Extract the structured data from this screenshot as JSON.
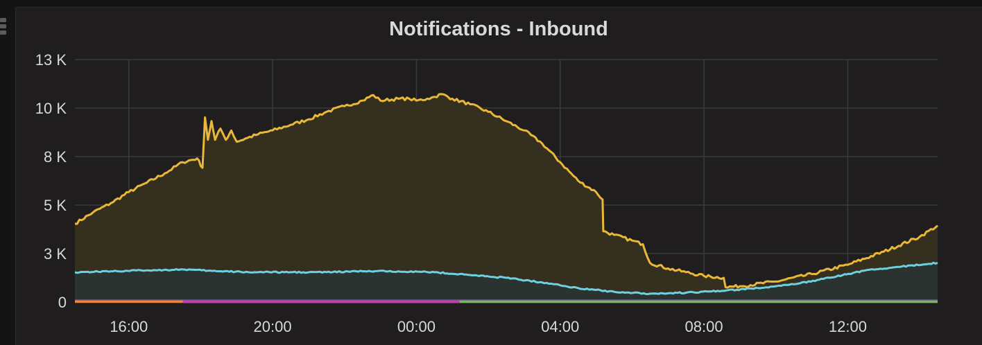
{
  "panel": {
    "title": "Notifications - Inbound"
  },
  "chart_data": {
    "type": "area",
    "title": "Notifications - Inbound",
    "xlabel": "",
    "ylabel": "",
    "grid": true,
    "legend": "none",
    "x_ticks": [
      "16:00",
      "20:00",
      "00:00",
      "04:00",
      "08:00",
      "12:00"
    ],
    "x_tick_hours": [
      16,
      20,
      24,
      28,
      32,
      36
    ],
    "xlim_hours": [
      14.5,
      38.5
    ],
    "y_ticks": [
      {
        "value": 0,
        "label": "0"
      },
      {
        "value": 2600,
        "label": "3 K"
      },
      {
        "value": 5200,
        "label": "5 K"
      },
      {
        "value": 7800,
        "label": "8 K"
      },
      {
        "value": 10400,
        "label": "10 K"
      },
      {
        "value": 13000,
        "label": "13 K"
      }
    ],
    "ylim": [
      0,
      13000
    ],
    "series": [
      {
        "color": "#eab839",
        "fill": "#36301f",
        "points": [
          [
            14.5,
            4200
          ],
          [
            15.0,
            4800
          ],
          [
            15.5,
            5300
          ],
          [
            16.0,
            5900
          ],
          [
            16.5,
            6400
          ],
          [
            17.0,
            6900
          ],
          [
            17.5,
            7500
          ],
          [
            17.9,
            7700
          ],
          [
            18.05,
            7200
          ],
          [
            18.12,
            9900
          ],
          [
            18.2,
            8700
          ],
          [
            18.3,
            9700
          ],
          [
            18.4,
            8700
          ],
          [
            18.55,
            9300
          ],
          [
            18.7,
            8700
          ],
          [
            18.85,
            9200
          ],
          [
            19.0,
            8600
          ],
          [
            19.3,
            8800
          ],
          [
            19.6,
            9000
          ],
          [
            20.0,
            9200
          ],
          [
            20.5,
            9500
          ],
          [
            21.0,
            9800
          ],
          [
            21.5,
            10200
          ],
          [
            22.0,
            10500
          ],
          [
            22.5,
            10800
          ],
          [
            22.8,
            11100
          ],
          [
            23.0,
            10800
          ],
          [
            23.5,
            10900
          ],
          [
            23.8,
            10900
          ],
          [
            24.0,
            10800
          ],
          [
            24.3,
            10900
          ],
          [
            24.5,
            11000
          ],
          [
            24.7,
            11150
          ],
          [
            25.0,
            10900
          ],
          [
            25.5,
            10600
          ],
          [
            26.0,
            10200
          ],
          [
            26.5,
            9700
          ],
          [
            27.0,
            9200
          ],
          [
            27.5,
            8500
          ],
          [
            28.0,
            7500
          ],
          [
            28.5,
            6500
          ],
          [
            29.0,
            5900
          ],
          [
            29.18,
            5500
          ],
          [
            29.2,
            3800
          ],
          [
            29.5,
            3600
          ],
          [
            30.0,
            3300
          ],
          [
            30.3,
            3100
          ],
          [
            30.5,
            2100
          ],
          [
            31.0,
            1800
          ],
          [
            31.5,
            1600
          ],
          [
            32.0,
            1400
          ],
          [
            32.55,
            1300
          ],
          [
            32.6,
            800
          ],
          [
            33.0,
            850
          ],
          [
            34.0,
            1100
          ],
          [
            35.0,
            1500
          ],
          [
            36.0,
            2000
          ],
          [
            37.0,
            2700
          ],
          [
            38.0,
            3500
          ],
          [
            38.5,
            4100
          ]
        ]
      },
      {
        "color": "#6ed0e0",
        "fill": "#2b3432",
        "points": [
          [
            14.5,
            1600
          ],
          [
            15.5,
            1650
          ],
          [
            16.5,
            1700
          ],
          [
            17.5,
            1750
          ],
          [
            18.5,
            1650
          ],
          [
            19.5,
            1600
          ],
          [
            20.5,
            1600
          ],
          [
            21.5,
            1600
          ],
          [
            22.5,
            1650
          ],
          [
            23.5,
            1650
          ],
          [
            24.5,
            1600
          ],
          [
            25.5,
            1450
          ],
          [
            26.5,
            1300
          ],
          [
            27.5,
            1050
          ],
          [
            28.0,
            900
          ],
          [
            28.5,
            750
          ],
          [
            29.0,
            650
          ],
          [
            29.5,
            550
          ],
          [
            30.5,
            450
          ],
          [
            31.5,
            500
          ],
          [
            32.5,
            600
          ],
          [
            33.5,
            750
          ],
          [
            34.5,
            950
          ],
          [
            35.5,
            1300
          ],
          [
            36.5,
            1700
          ],
          [
            37.5,
            1900
          ],
          [
            38.5,
            2100
          ]
        ]
      },
      {
        "color": "#705da0",
        "fill": "none",
        "points": [
          [
            14.5,
            70
          ],
          [
            24.0,
            70
          ],
          [
            38.5,
            70
          ]
        ]
      },
      {
        "color": "#ba43a9",
        "fill": "none",
        "points": [
          [
            17.5,
            10
          ],
          [
            25.2,
            10
          ]
        ]
      },
      {
        "color": "#ef843c",
        "fill": "none",
        "points": [
          [
            14.5,
            20
          ],
          [
            17.5,
            20
          ]
        ]
      },
      {
        "color": "#7eb26d",
        "fill": "none",
        "points": [
          [
            25.2,
            15
          ],
          [
            38.5,
            15
          ]
        ]
      }
    ]
  }
}
